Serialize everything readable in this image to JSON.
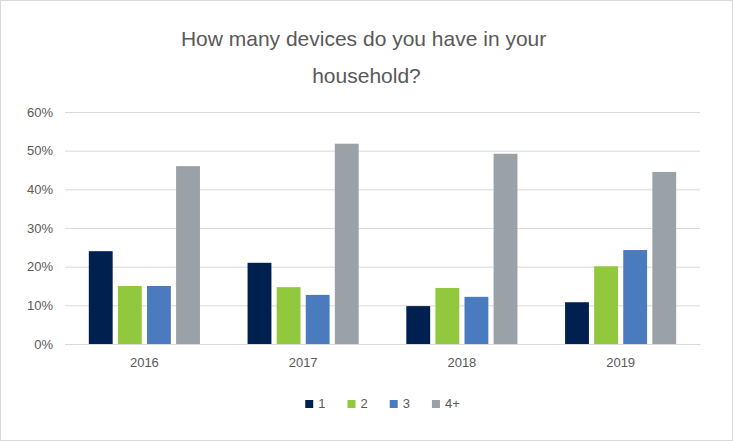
{
  "chart_data": {
    "type": "bar",
    "title": "How many devices do you have in your household?",
    "categories": [
      "2016",
      "2017",
      "2018",
      "2019"
    ],
    "series": [
      {
        "name": "1",
        "color": "#002050",
        "values": [
          24,
          21,
          9.8,
          10.8
        ]
      },
      {
        "name": "2",
        "color": "#92c83e",
        "values": [
          15,
          14.7,
          14.5,
          20.1
        ]
      },
      {
        "name": "3",
        "color": "#4a7bbf",
        "values": [
          15,
          12.7,
          12.2,
          24.3
        ]
      },
      {
        "name": "4+",
        "color": "#9aa2a8",
        "values": [
          46,
          51.8,
          49.2,
          44.5
        ]
      }
    ],
    "ylim": [
      0,
      60
    ],
    "yticks": [
      {
        "value": 0,
        "label": "0%"
      },
      {
        "value": 10,
        "label": "10%"
      },
      {
        "value": 20,
        "label": "20%"
      },
      {
        "value": 30,
        "label": "30%"
      },
      {
        "value": 40,
        "label": "40%"
      },
      {
        "value": 50,
        "label": "50%"
      },
      {
        "value": 60,
        "label": "60%"
      }
    ],
    "grid": true,
    "legend": "bottom"
  }
}
